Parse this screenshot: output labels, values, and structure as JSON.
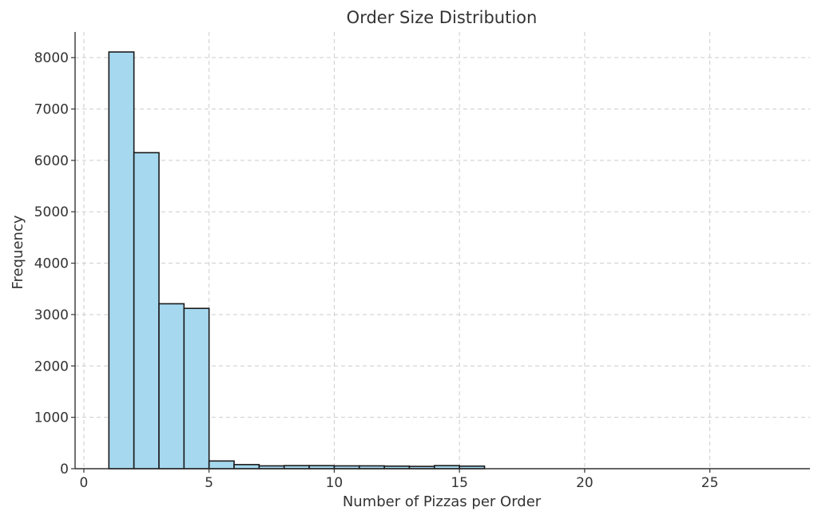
{
  "chart_data": {
    "type": "bar",
    "title": "Order Size Distribution",
    "xlabel": "Number of Pizzas per Order",
    "ylabel": "Frequency",
    "xlim": [
      -0.35,
      29.0
    ],
    "ylim": [
      0,
      8500
    ],
    "xticks": [
      0,
      5,
      10,
      15,
      20,
      25
    ],
    "yticks": [
      0,
      1000,
      2000,
      3000,
      4000,
      5000,
      6000,
      7000,
      8000
    ],
    "grid": true,
    "bar_color": "#a6d8ef",
    "edge_color": "#1a1a1a",
    "bins": [
      {
        "start": 1,
        "end": 2,
        "value": 8110
      },
      {
        "start": 2,
        "end": 3,
        "value": 6150
      },
      {
        "start": 3,
        "end": 4,
        "value": 3210
      },
      {
        "start": 4,
        "end": 5,
        "value": 3120
      },
      {
        "start": 5,
        "end": 6,
        "value": 150
      },
      {
        "start": 6,
        "end": 7,
        "value": 80
      },
      {
        "start": 7,
        "end": 8,
        "value": 55
      },
      {
        "start": 8,
        "end": 9,
        "value": 60
      },
      {
        "start": 9,
        "end": 10,
        "value": 60
      },
      {
        "start": 10,
        "end": 11,
        "value": 55
      },
      {
        "start": 11,
        "end": 12,
        "value": 55
      },
      {
        "start": 12,
        "end": 13,
        "value": 50
      },
      {
        "start": 13,
        "end": 14,
        "value": 45
      },
      {
        "start": 14,
        "end": 15,
        "value": 60
      },
      {
        "start": 15,
        "end": 16,
        "value": 50
      }
    ]
  }
}
